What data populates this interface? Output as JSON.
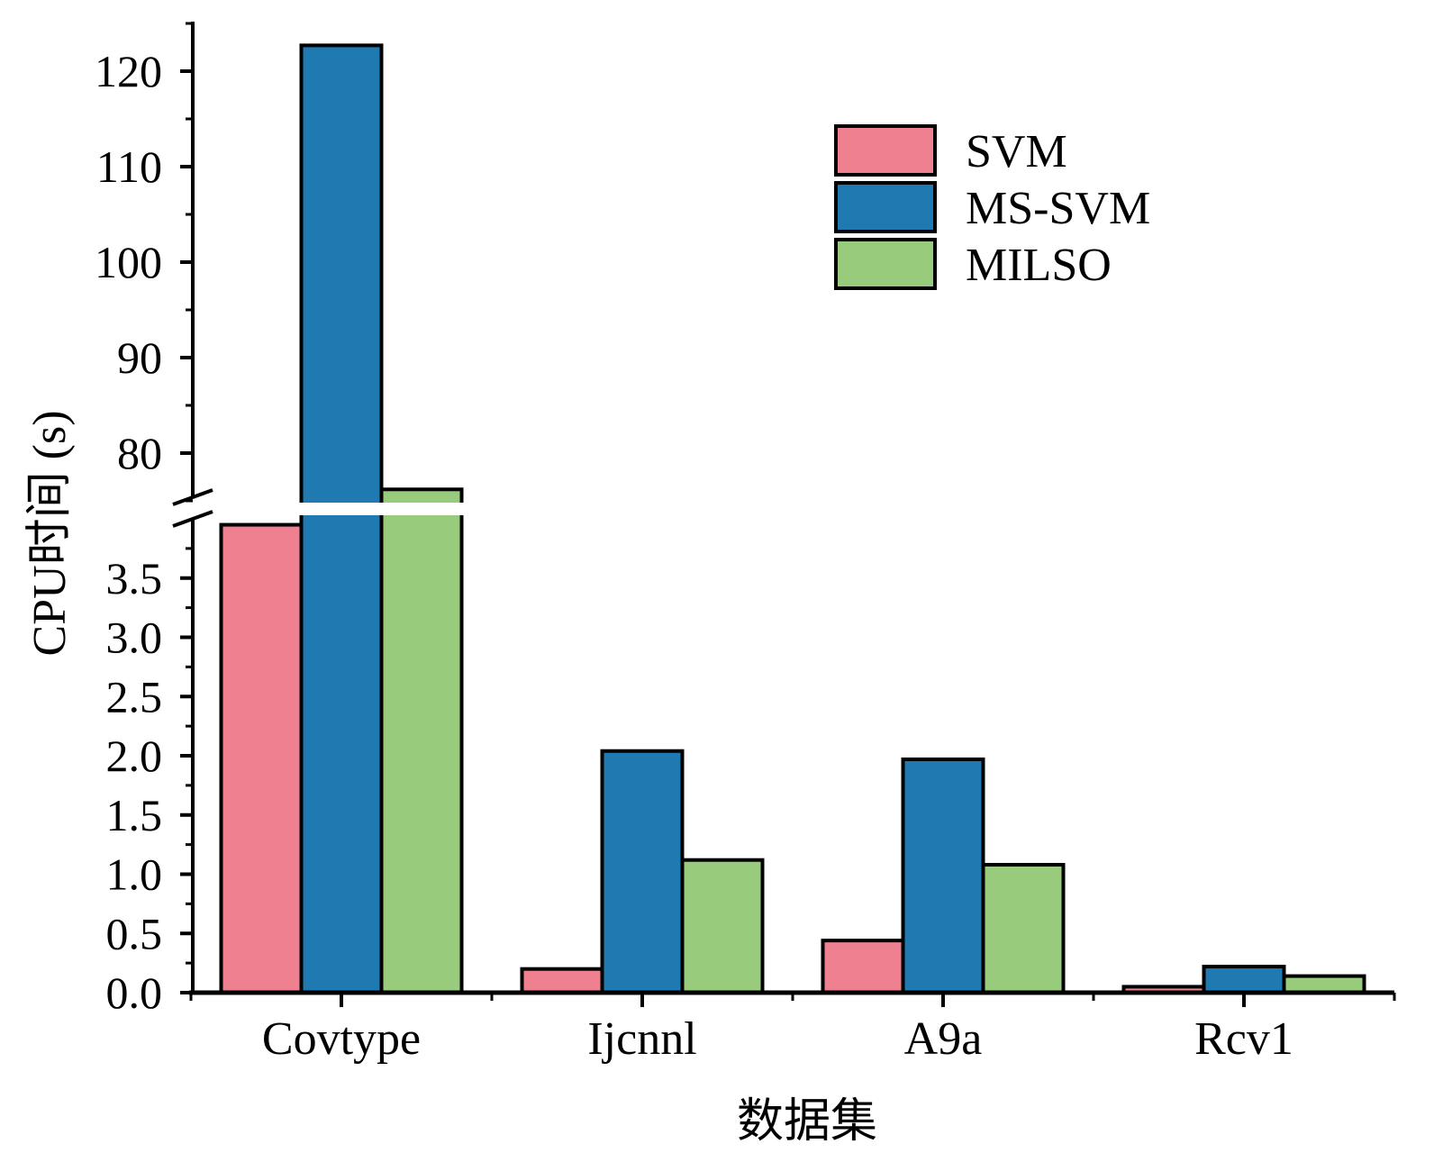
{
  "chart_data": {
    "type": "bar",
    "xlabel": "数据集",
    "ylabel": "CPU时间 (s)",
    "categories": [
      "Covtype",
      "Ijcnnl",
      "A9a",
      "Rcv1"
    ],
    "series": [
      {
        "name": "SVM",
        "color": "#ee8090",
        "values": [
          3.95,
          0.2,
          0.44,
          0.05
        ]
      },
      {
        "name": "MS-SVM",
        "color": "#1f7ab1",
        "values": [
          122.7,
          2.04,
          1.97,
          0.22
        ]
      },
      {
        "name": "MILSO",
        "color": "#98cc7c",
        "values": [
          76.2,
          1.12,
          1.08,
          0.14
        ]
      }
    ],
    "y_axis": {
      "broken": true,
      "lower_segment": {
        "ylim": [
          0,
          4.0
        ],
        "ticks": [
          "0.0",
          "0.5",
          "1.0",
          "1.5",
          "2.0",
          "2.5",
          "3.0",
          "3.5"
        ]
      },
      "upper_segment": {
        "ylim": [
          75,
          125
        ],
        "ticks": [
          "80",
          "90",
          "100",
          "110",
          "120"
        ]
      }
    },
    "legend_position": "top-right",
    "grid": false
  }
}
